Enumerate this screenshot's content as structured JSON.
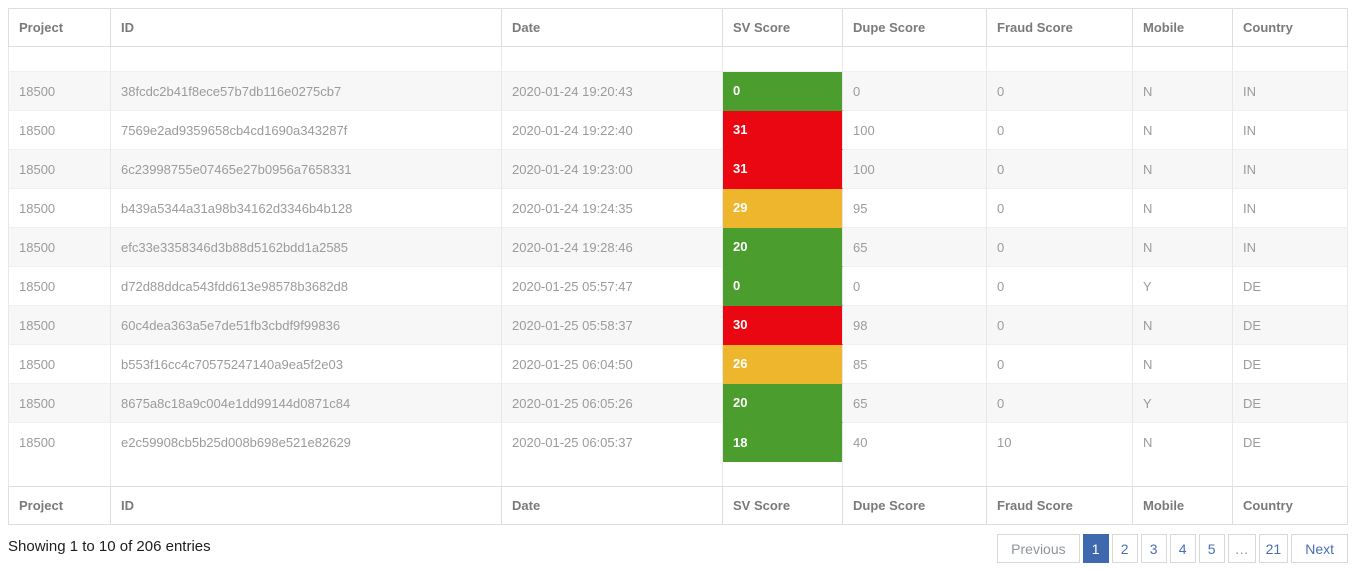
{
  "table": {
    "columns": [
      "Project",
      "ID",
      "Date",
      "SV Score",
      "Dupe Score",
      "Fraud Score",
      "Mobile",
      "Country"
    ],
    "rows": [
      {
        "project": "18500",
        "id": "38fcdc2b41f8ece57b7db116e0275cb7",
        "date": "2020-01-24 19:20:43",
        "sv_score": "0",
        "sv_level": "green",
        "dupe_score": "0",
        "fraud_score": "0",
        "mobile": "N",
        "country": "IN"
      },
      {
        "project": "18500",
        "id": "7569e2ad9359658cb4cd1690a343287f",
        "date": "2020-01-24 19:22:40",
        "sv_score": "31",
        "sv_level": "red",
        "dupe_score": "100",
        "fraud_score": "0",
        "mobile": "N",
        "country": "IN"
      },
      {
        "project": "18500",
        "id": "6c23998755e07465e27b0956a7658331",
        "date": "2020-01-24 19:23:00",
        "sv_score": "31",
        "sv_level": "red",
        "dupe_score": "100",
        "fraud_score": "0",
        "mobile": "N",
        "country": "IN"
      },
      {
        "project": "18500",
        "id": "b439a5344a31a98b34162d3346b4b128",
        "date": "2020-01-24 19:24:35",
        "sv_score": "29",
        "sv_level": "amber",
        "dupe_score": "95",
        "fraud_score": "0",
        "mobile": "N",
        "country": "IN"
      },
      {
        "project": "18500",
        "id": "efc33e3358346d3b88d5162bdd1a2585",
        "date": "2020-01-24 19:28:46",
        "sv_score": "20",
        "sv_level": "green",
        "dupe_score": "65",
        "fraud_score": "0",
        "mobile": "N",
        "country": "IN"
      },
      {
        "project": "18500",
        "id": "d72d88ddca543fdd613e98578b3682d8",
        "date": "2020-01-25 05:57:47",
        "sv_score": "0",
        "sv_level": "green",
        "dupe_score": "0",
        "fraud_score": "0",
        "mobile": "Y",
        "country": "DE"
      },
      {
        "project": "18500",
        "id": "60c4dea363a5e7de51fb3cbdf9f99836",
        "date": "2020-01-25 05:58:37",
        "sv_score": "30",
        "sv_level": "red",
        "dupe_score": "98",
        "fraud_score": "0",
        "mobile": "N",
        "country": "DE"
      },
      {
        "project": "18500",
        "id": "b553f16cc4c70575247140a9ea5f2e03",
        "date": "2020-01-25 06:04:50",
        "sv_score": "26",
        "sv_level": "amber",
        "dupe_score": "85",
        "fraud_score": "0",
        "mobile": "N",
        "country": "DE"
      },
      {
        "project": "18500",
        "id": "8675a8c18a9c004e1dd99144d0871c84",
        "date": "2020-01-25 06:05:26",
        "sv_score": "20",
        "sv_level": "green",
        "dupe_score": "65",
        "fraud_score": "0",
        "mobile": "Y",
        "country": "DE"
      },
      {
        "project": "18500",
        "id": "e2c59908cb5b25d008b698e521e82629",
        "date": "2020-01-25 06:05:37",
        "sv_score": "18",
        "sv_level": "green",
        "dupe_score": "40",
        "fraud_score": "10",
        "mobile": "N",
        "country": "DE"
      }
    ]
  },
  "score_colors": {
    "green": "#4B9E2D",
    "red": "#EB0711",
    "amber": "#EEB62D"
  },
  "footer": {
    "info_text": "Showing 1 to 10 of 206 entries"
  },
  "pagination": {
    "previous_label": "Previous",
    "pages": [
      "1",
      "2",
      "3",
      "4",
      "5",
      "…",
      "21"
    ],
    "active_page": "1",
    "next_label": "Next"
  }
}
